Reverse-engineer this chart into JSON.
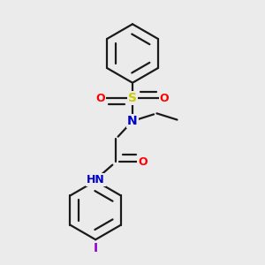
{
  "background_color": "#ebebeb",
  "atom_colors": {
    "C": "#000000",
    "N": "#0000cc",
    "O": "#ff0000",
    "S": "#cccc00",
    "I": "#9400d3",
    "H": "#5a8a8a"
  },
  "bond_color": "#1a1a1a",
  "bond_width": 1.6,
  "figsize": [
    3.0,
    3.0
  ],
  "dpi": 100
}
